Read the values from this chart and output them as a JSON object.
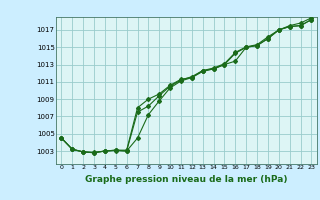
{
  "xlabel": "Graphe pression niveau de la mer (hPa)",
  "background_color": "#cceeff",
  "plot_bg": "#ddf5f5",
  "grid_color": "#99cccc",
  "line_color": "#1a6b1a",
  "marker_color": "#1a6b1a",
  "ylim": [
    1001.5,
    1018.5
  ],
  "xlim": [
    -0.5,
    23.5
  ],
  "yticks": [
    1003,
    1005,
    1007,
    1009,
    1011,
    1013,
    1015,
    1017
  ],
  "xticks": [
    0,
    1,
    2,
    3,
    4,
    5,
    6,
    7,
    8,
    9,
    10,
    11,
    12,
    13,
    14,
    15,
    16,
    17,
    18,
    19,
    20,
    21,
    22,
    23
  ],
  "series1": [
    1004.5,
    1003.2,
    1002.9,
    1002.8,
    1003.0,
    1003.1,
    1003.1,
    1008.0,
    1009.0,
    1009.6,
    1010.6,
    1011.3,
    1011.5,
    1012.3,
    1012.5,
    1013.0,
    1013.4,
    1015.0,
    1015.2,
    1016.0,
    1017.0,
    1017.4,
    1017.5,
    1018.2
  ],
  "series2": [
    1004.5,
    1003.2,
    1002.9,
    1002.85,
    1003.0,
    1003.05,
    1003.0,
    1007.5,
    1008.2,
    1009.4,
    1010.5,
    1011.2,
    1011.6,
    1012.3,
    1012.6,
    1013.1,
    1014.4,
    1015.05,
    1015.3,
    1016.2,
    1017.0,
    1017.5,
    1017.8,
    1018.4
  ],
  "series3": [
    1004.5,
    1003.2,
    1002.9,
    1002.8,
    1003.0,
    1003.1,
    1003.0,
    1004.5,
    1007.2,
    1008.8,
    1010.3,
    1011.1,
    1011.5,
    1012.2,
    1012.5,
    1013.0,
    1014.3,
    1015.0,
    1015.2,
    1016.0,
    1017.0,
    1017.4,
    1017.5,
    1018.2
  ]
}
